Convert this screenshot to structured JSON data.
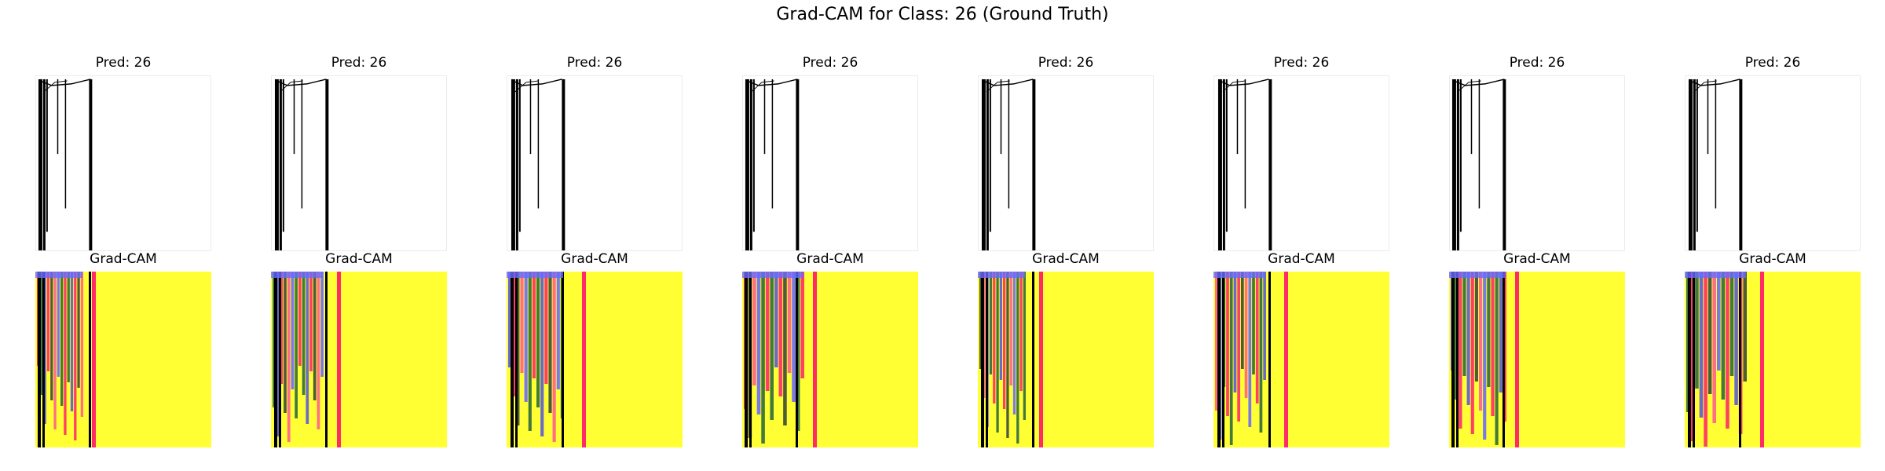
{
  "figure": {
    "title": "Grad-CAM for Class: 26 (Ground Truth)",
    "heatmap_color": "#ffff33",
    "panels": [
      {
        "pred_label": "Pred: 26",
        "cam_label": "Grad-CAM"
      },
      {
        "pred_label": "Pred: 26",
        "cam_label": "Grad-CAM"
      },
      {
        "pred_label": "Pred: 26",
        "cam_label": "Grad-CAM"
      },
      {
        "pred_label": "Pred: 26",
        "cam_label": "Grad-CAM"
      },
      {
        "pred_label": "Pred: 26",
        "cam_label": "Grad-CAM"
      },
      {
        "pred_label": "Pred: 26",
        "cam_label": "Grad-CAM"
      },
      {
        "pred_label": "Pred: 26",
        "cam_label": "Grad-CAM"
      },
      {
        "pred_label": "Pred: 26",
        "cam_label": "Grad-CAM"
      }
    ]
  }
}
